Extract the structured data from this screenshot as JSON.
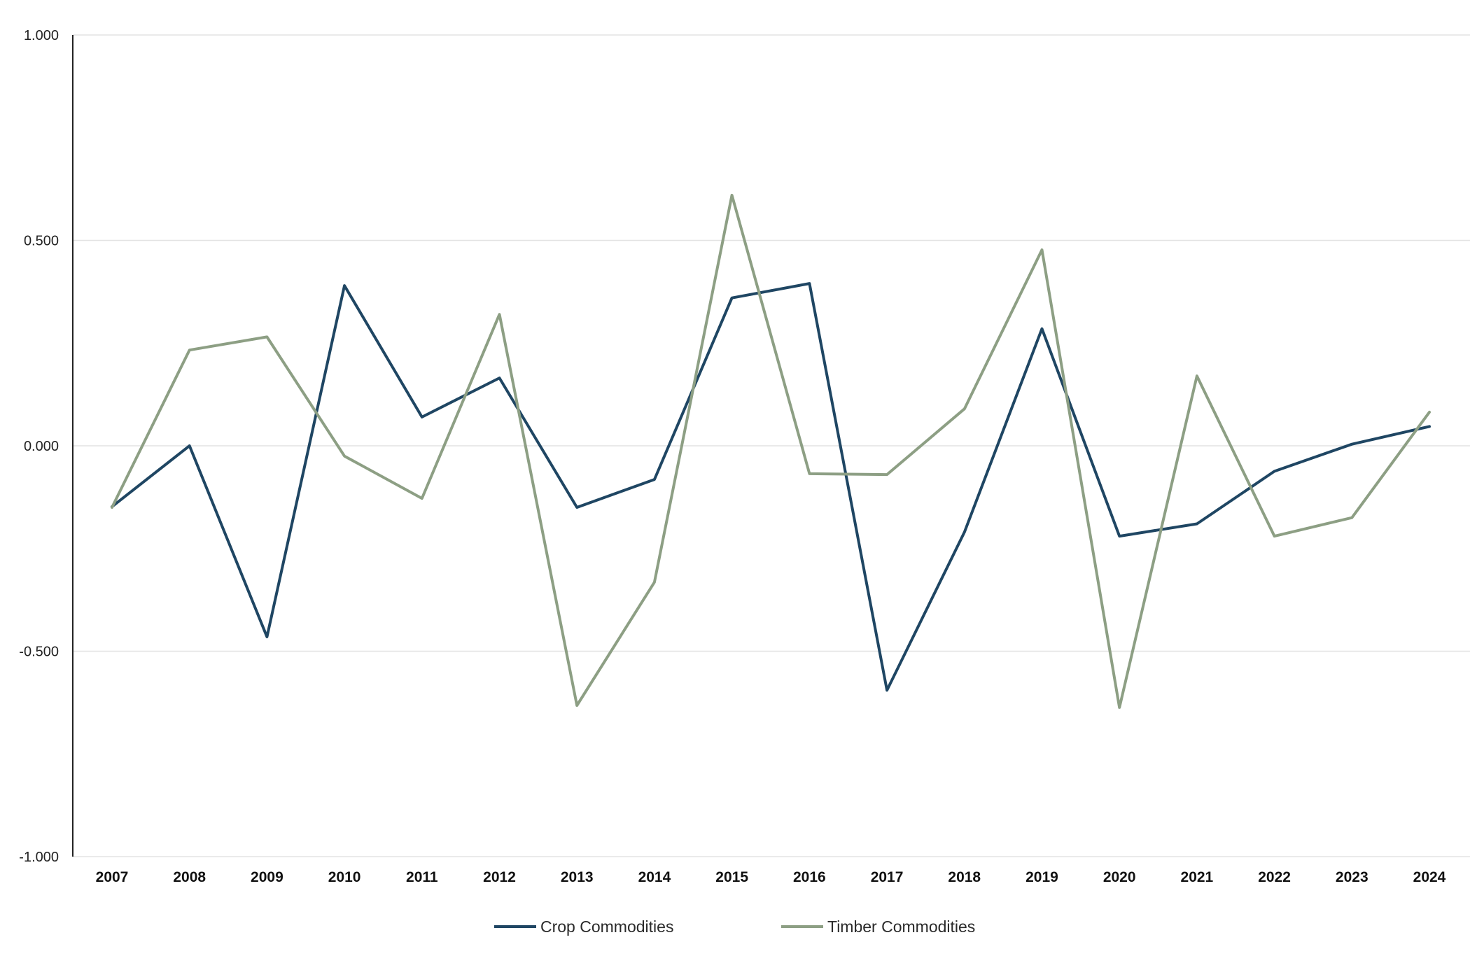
{
  "chart_data": {
    "type": "line",
    "title": "",
    "xlabel": "",
    "ylabel": "",
    "categories": [
      "2007",
      "2008",
      "2009",
      "2010",
      "2011",
      "2012",
      "2013",
      "2014",
      "2015",
      "2016",
      "2017",
      "2018",
      "2019",
      "2020",
      "2021",
      "2022",
      "2023",
      "2024"
    ],
    "y_ticks": [
      "1.000",
      "0.500",
      "0.000",
      "-0.500",
      "-1.000"
    ],
    "ylim": [
      -1.0,
      1.0
    ],
    "grid": true,
    "legend_position": "bottom-center",
    "series": [
      {
        "name": "Crop Commodities",
        "color": "#1f4663",
        "values": [
          -0.148,
          0.0,
          -0.465,
          0.39,
          0.07,
          0.165,
          -0.15,
          -0.082,
          0.36,
          0.395,
          -0.595,
          -0.21,
          0.285,
          -0.22,
          -0.19,
          -0.062,
          0.004,
          0.047
        ]
      },
      {
        "name": "Timber Commodities",
        "color": "#8d9f84",
        "values": [
          -0.15,
          0.233,
          0.265,
          -0.025,
          -0.128,
          0.32,
          -0.632,
          -0.332,
          0.61,
          -0.068,
          -0.07,
          0.09,
          0.477,
          -0.637,
          0.17,
          -0.22,
          -0.175,
          0.082
        ]
      }
    ]
  }
}
